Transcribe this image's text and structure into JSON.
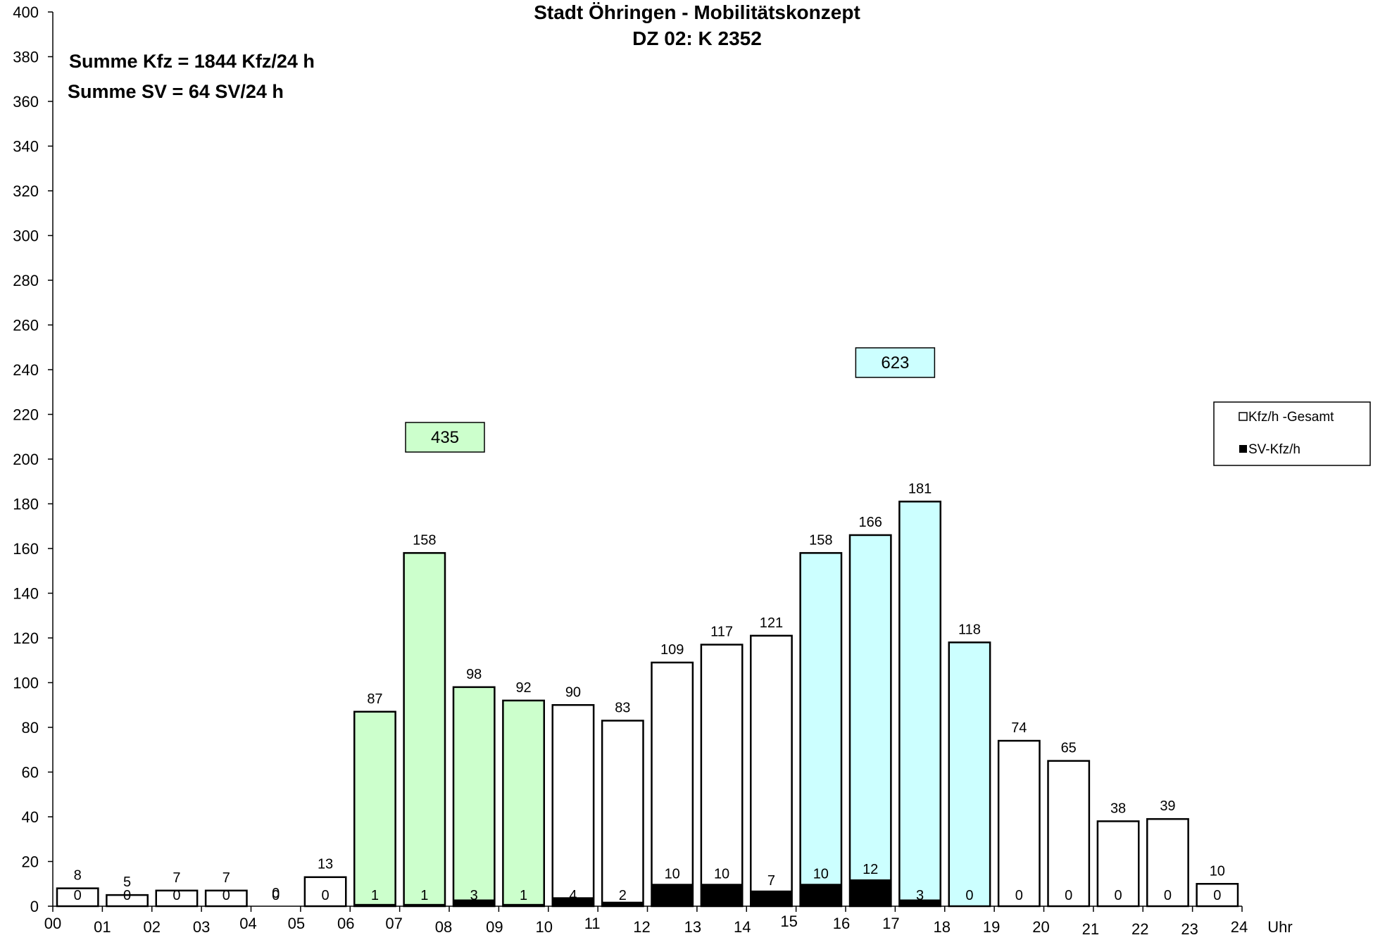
{
  "chart_data": {
    "type": "bar",
    "title": "Stadt Öhringen - Mobilitätskonzept",
    "subtitle": "DZ 02: K 2352",
    "x_unit_label": "Uhr",
    "x_tick_labels": [
      "00",
      "01",
      "02",
      "03",
      "04",
      "05",
      "06",
      "07",
      "08",
      "09",
      "10",
      "11",
      "12",
      "13",
      "14",
      "15",
      "16",
      "17",
      "18",
      "19",
      "20",
      "21",
      "22",
      "23",
      "24"
    ],
    "ylim": [
      0,
      400
    ],
    "y_ticks": [
      0,
      20,
      40,
      60,
      80,
      100,
      120,
      140,
      160,
      180,
      200,
      220,
      240,
      260,
      280,
      300,
      320,
      340,
      360,
      380,
      400
    ],
    "grid": false,
    "legend_position": "right",
    "series": [
      {
        "name": "Kfz/h -Gesamt",
        "values": [
          8,
          5,
          7,
          7,
          0,
          13,
          87,
          158,
          98,
          92,
          90,
          83,
          109,
          117,
          121,
          158,
          166,
          181,
          118,
          74,
          65,
          38,
          39,
          10
        ]
      },
      {
        "name": "SV-Kfz/h",
        "values": [
          0,
          0,
          0,
          0,
          0,
          0,
          1,
          1,
          3,
          1,
          4,
          2,
          10,
          10,
          7,
          10,
          12,
          3,
          0,
          0,
          0,
          0,
          0,
          0
        ]
      }
    ],
    "peak_boxes": [
      {
        "label": "435",
        "hours": [
          6,
          9
        ],
        "color": "#ccffcc"
      },
      {
        "label": "623",
        "hours": [
          15,
          18
        ],
        "color": "#ccffff"
      }
    ],
    "annotations": [
      "Summe Kfz = 1844 Kfz/24 h",
      "Summe SV = 64 SV/24 h"
    ],
    "colors": {
      "morning_peak": "#ccffcc",
      "evening_peak": "#ccffff",
      "normal": "#ffffff",
      "sv": "#000000"
    }
  }
}
